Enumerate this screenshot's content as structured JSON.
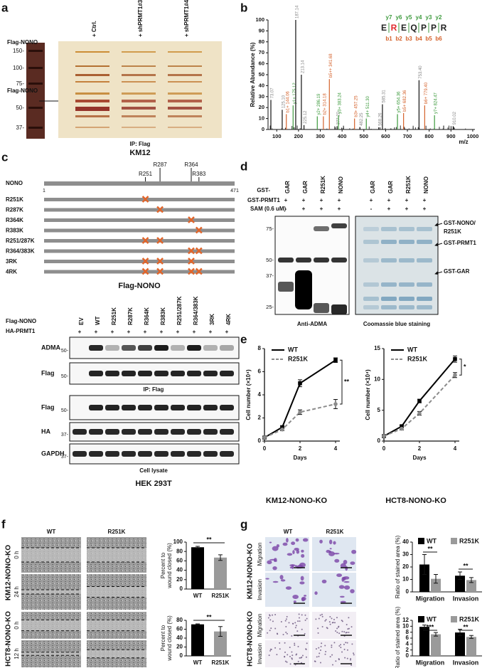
{
  "panels": {
    "a": {
      "label": "a",
      "lanes": [
        "+ Ctrl.",
        "+ shPRMT1#3",
        "+ shPRMT1#4"
      ],
      "markers": [
        "150-",
        "100-",
        "75-",
        "50-",
        "37-"
      ],
      "protein_labels": [
        "Flag-NONO",
        "Flag-NONO"
      ],
      "caption": "IP: Flag",
      "cell_line": "KM12"
    },
    "b": {
      "label": "b",
      "ylabel": "Relative Abundance (%)",
      "xlabel": "m/z",
      "xlim": [
        60,
        1010
      ],
      "ylim": [
        0,
        100
      ],
      "xticks": [
        100,
        200,
        300,
        400,
        500,
        600,
        700,
        800,
        900,
        1000
      ],
      "yticks": [
        0,
        10,
        20,
        30,
        40,
        50,
        60,
        70,
        80,
        90,
        100
      ],
      "y_ions": [
        "y7",
        "y6",
        "y5",
        "y4",
        "y3",
        "y2"
      ],
      "b_ions": [
        "b1",
        "b2",
        "b3",
        "b4",
        "b5",
        "b6"
      ],
      "sequence": [
        {
          "residue": "E",
          "color": "#222222"
        },
        {
          "residue": "R",
          "color": "#e0262b"
        },
        {
          "residue": "E",
          "color": "#222222"
        },
        {
          "residue": "Q",
          "color": "#222222"
        },
        {
          "residue": "P",
          "color": "#222222"
        },
        {
          "residue": "P",
          "color": "#222222"
        },
        {
          "residue": "R",
          "color": "#222222"
        }
      ],
      "peaks": [
        {
          "mz": 73.07,
          "intensity": 27,
          "label": "73.07",
          "color": "#888888"
        },
        {
          "mz": 125.1,
          "intensity": 18,
          "label": "125.10",
          "color": "#888888"
        },
        {
          "mz": 144.06,
          "intensity": 14,
          "label": "b1+ 144.06",
          "color": "#d4612a"
        },
        {
          "mz": 175.12,
          "intensity": 22,
          "label": "y1+ 175.12",
          "color": "#3d9a3d"
        },
        {
          "mz": 187.14,
          "intensity": 100,
          "label": "187.14",
          "color": "#888888"
        },
        {
          "mz": 213.14,
          "intensity": 50,
          "label": "213.14",
          "color": "#888888"
        },
        {
          "mz": 225.12,
          "intensity": 4,
          "label": "225.12",
          "color": "#888888"
        },
        {
          "mz": 286.19,
          "intensity": 12,
          "label": "y2+ 286.19",
          "color": "#3d9a3d"
        },
        {
          "mz": 314.18,
          "intensity": 12,
          "label": "b2+ 314.18",
          "color": "#d4612a"
        },
        {
          "mz": 341.68,
          "intensity": 46,
          "label": "b5++ 341.68",
          "color": "#d4612a"
        },
        {
          "mz": 377.2,
          "intensity": 3,
          "label": "377.20",
          "color": "#888888"
        },
        {
          "mz": 383.24,
          "intensity": 13,
          "label": "y3+ 383.24",
          "color": "#3d9a3d"
        },
        {
          "mz": 457.25,
          "intensity": 10,
          "label": "b3+ 457.25",
          "color": "#d4612a"
        },
        {
          "mz": 482.25,
          "intensity": 2,
          "label": "482.25",
          "color": "#888888"
        },
        {
          "mz": 511.3,
          "intensity": 10,
          "label": "y4+ 511.30",
          "color": "#3d9a3d"
        },
        {
          "mz": 568.26,
          "intensity": 2,
          "label": "568.26",
          "color": "#888888"
        },
        {
          "mz": 585.31,
          "intensity": 23,
          "label": "585.31",
          "color": "#888888"
        },
        {
          "mz": 654.36,
          "intensity": 14,
          "label": "y5+ 654.36",
          "color": "#3d9a3d"
        },
        {
          "mz": 682.36,
          "intensity": 15,
          "label": "b5+ 682.36",
          "color": "#d4612a"
        },
        {
          "mz": 753.4,
          "intensity": 45,
          "label": "753.40",
          "color": "#888888"
        },
        {
          "mz": 779.4,
          "intensity": 22,
          "label": "b6+ 779.40",
          "color": "#d4612a"
        },
        {
          "mz": 824.47,
          "intensity": 13,
          "label": "y7+ 824.47",
          "color": "#3d9a3d"
        },
        {
          "mz": 910.02,
          "intensity": 3,
          "label": "910.02",
          "color": "#888888"
        }
      ]
    },
    "c": {
      "label": "c",
      "protein": "NONO",
      "start": 1,
      "end": 471,
      "sites": [
        "R251",
        "R287",
        "R364",
        "R383"
      ],
      "mutants": [
        {
          "name": "R251K",
          "sites": [
            "R251"
          ]
        },
        {
          "name": "R287K",
          "sites": [
            "R287"
          ]
        },
        {
          "name": "R364K",
          "sites": [
            "R364"
          ]
        },
        {
          "name": "R383K",
          "sites": [
            "R383"
          ]
        },
        {
          "name": "R251/287K",
          "sites": [
            "R251",
            "R287"
          ]
        },
        {
          "name": "R364/383K",
          "sites": [
            "R364",
            "R383"
          ]
        },
        {
          "name": "3RK",
          "sites": [
            "R251",
            "R287",
            "R364"
          ]
        },
        {
          "name": "4RK",
          "sites": [
            "R251",
            "R287",
            "R364",
            "R383"
          ]
        }
      ],
      "construct": "Flag-NONO",
      "row_labels": [
        "Flag-NONO",
        "HA-PRMT1"
      ],
      "lanes": [
        "EV",
        "WT",
        "R251K",
        "R287K",
        "R364K",
        "R383K",
        "R251/287K",
        "R364/383K",
        "3RK",
        "4RK"
      ],
      "ha_prmt1": [
        "+",
        "+",
        "+",
        "+",
        "+",
        "+",
        "+",
        "+",
        "+",
        "+"
      ],
      "blots": [
        {
          "name": "ADMA",
          "marker": "50-"
        },
        {
          "name": "Flag",
          "marker": "50-"
        },
        {
          "name": "Flag",
          "marker": "50-"
        },
        {
          "name": "HA",
          "marker": "37-"
        },
        {
          "name": "GAPDH",
          "marker": "37-"
        }
      ],
      "captions": [
        "IP: Flag",
        "Cell lysate"
      ],
      "cell_line": "HEK 293T"
    },
    "d": {
      "label": "d",
      "gst_label": "GST-",
      "lanes": [
        "GAR",
        "GAR",
        "R251K",
        "NONO",
        "GAR",
        "GAR",
        "R251K",
        "NONO"
      ],
      "prmt1_label": "GST-PRMT1",
      "prmt1": [
        "+",
        "+",
        "+",
        "+",
        "+",
        "+",
        "+",
        "+"
      ],
      "sam_label": "SAM (0.6 uM)",
      "sam": [
        "-",
        "+",
        "+",
        "+",
        "-",
        "+",
        "+",
        "+"
      ],
      "markers": [
        "75-",
        "50-",
        "37-",
        "25-"
      ],
      "arrows": [
        [
          "GST-NONO/",
          "R251K"
        ],
        [
          "GST-PRMT1"
        ],
        [
          "GST-GAR"
        ]
      ],
      "captions": [
        "Anti-ADMA",
        "Coomassie blue staining"
      ]
    },
    "e": {
      "label": "e",
      "charts": [
        {
          "type": "line",
          "title": "KM12-NONO-KO",
          "xlabel": "Days",
          "ylabel": "Cell number (×10⁴)",
          "x": [
            0,
            1,
            2,
            4
          ],
          "xlim": [
            0,
            4
          ],
          "xticks": [
            0,
            2,
            4
          ],
          "ylim": [
            0,
            8
          ],
          "yticks": [
            0,
            2,
            4,
            6,
            8
          ],
          "significance": "**",
          "series": [
            {
              "name": "WT",
              "color": "#000000",
              "values": [
                0.3,
                1.2,
                5.0,
                7.0
              ],
              "errors": [
                0.05,
                0.1,
                0.3,
                0.2
              ]
            },
            {
              "name": "R251K",
              "color": "#8c8c8c",
              "values": [
                0.3,
                1.0,
                2.5,
                3.2
              ],
              "errors": [
                0.05,
                0.1,
                0.2,
                0.4
              ]
            }
          ]
        },
        {
          "type": "line",
          "title": "HCT8-NONO-KO",
          "xlabel": "Days",
          "ylabel": "Cell number (×10⁴)",
          "x": [
            0,
            1,
            2,
            4
          ],
          "xlim": [
            0,
            4
          ],
          "xticks": [
            0,
            2,
            4
          ],
          "ylim": [
            0,
            15
          ],
          "yticks": [
            0,
            5,
            10,
            15
          ],
          "significance": "*",
          "series": [
            {
              "name": "WT",
              "color": "#000000",
              "values": [
                0.8,
                2.4,
                6.5,
                13.3
              ],
              "errors": [
                0.1,
                0.2,
                0.3,
                0.5
              ]
            },
            {
              "name": "R251K",
              "color": "#8c8c8c",
              "values": [
                0.8,
                2.0,
                4.5,
                10.7
              ],
              "errors": [
                0.1,
                0.2,
                0.3,
                0.4
              ]
            }
          ]
        }
      ]
    },
    "f": {
      "label": "f",
      "columns": [
        "WT",
        "R251K"
      ],
      "rows": [
        {
          "label": "KM12-NONO-KO",
          "times": [
            "0 h",
            "24 h"
          ],
          "chart": {
            "type": "bar",
            "ylabel": [
              "Percent to",
              "wound closed (%)"
            ],
            "categories": [
              "WT",
              "R251K"
            ],
            "values": [
              89,
              67
            ],
            "errors": [
              2,
              6
            ],
            "colors": [
              "#000000",
              "#9a9a9a"
            ],
            "ylim": [
              0,
              100
            ],
            "yticks": [
              0,
              20,
              40,
              60,
              80,
              100
            ],
            "significance": "**"
          }
        },
        {
          "label": "HCT8-NONO-KO",
          "times": [
            "0 h",
            "12 h"
          ],
          "chart": {
            "type": "bar",
            "ylabel": [
              "Percent to",
              "wound closed (%)"
            ],
            "categories": [
              "WT",
              "R251K"
            ],
            "values": [
              71,
              55
            ],
            "errors": [
              1,
              11
            ],
            "colors": [
              "#000000",
              "#9a9a9a"
            ],
            "ylim": [
              0,
              80
            ],
            "yticks": [
              0,
              20,
              40,
              60,
              80
            ],
            "significance": "**"
          }
        }
      ]
    },
    "g": {
      "label": "g",
      "columns": [
        "WT",
        "R251K"
      ],
      "rows": [
        {
          "label": "KM12-NONO-KO",
          "assays": [
            "Migration",
            "Invasion"
          ],
          "chart": {
            "type": "bar",
            "ylabel": "Ratio of stained area (%)",
            "categories": [
              "Migration",
              "Invasion"
            ],
            "ylim": [
              0,
              40
            ],
            "yticks": [
              0,
              10,
              20,
              30,
              40
            ],
            "significance": [
              "**",
              "**"
            ],
            "series": [
              {
                "name": "WT",
                "color": "#000000",
                "values": [
                  22,
                  13
                ],
                "errors": [
                  8,
                  3
                ]
              },
              {
                "name": "R251K",
                "color": "#9a9a9a",
                "values": [
                  10.5,
                  9.5
                ],
                "errors": [
                  3.5,
                  2
                ]
              }
            ]
          }
        },
        {
          "label": "HCT8-NONO-KO",
          "assays": [
            "Migration",
            "Invasion"
          ],
          "chart": {
            "type": "bar",
            "ylabel": "Ratio of stained area (%)",
            "categories": [
              "Migration",
              "Invasion"
            ],
            "ylim": [
              0,
              12
            ],
            "yticks": [
              0,
              2,
              4,
              6,
              8,
              10,
              12
            ],
            "significance": [
              "***",
              "**"
            ],
            "series": [
              {
                "name": "WT",
                "color": "#000000",
                "values": [
                  9.8,
                  7.9
                ],
                "errors": [
                  0.6,
                  1.1
                ]
              },
              {
                "name": "R251K",
                "color": "#9a9a9a",
                "values": [
                  7.3,
                  6.4
                ],
                "errors": [
                  0.6,
                  0.5
                ]
              }
            ]
          }
        }
      ]
    }
  }
}
